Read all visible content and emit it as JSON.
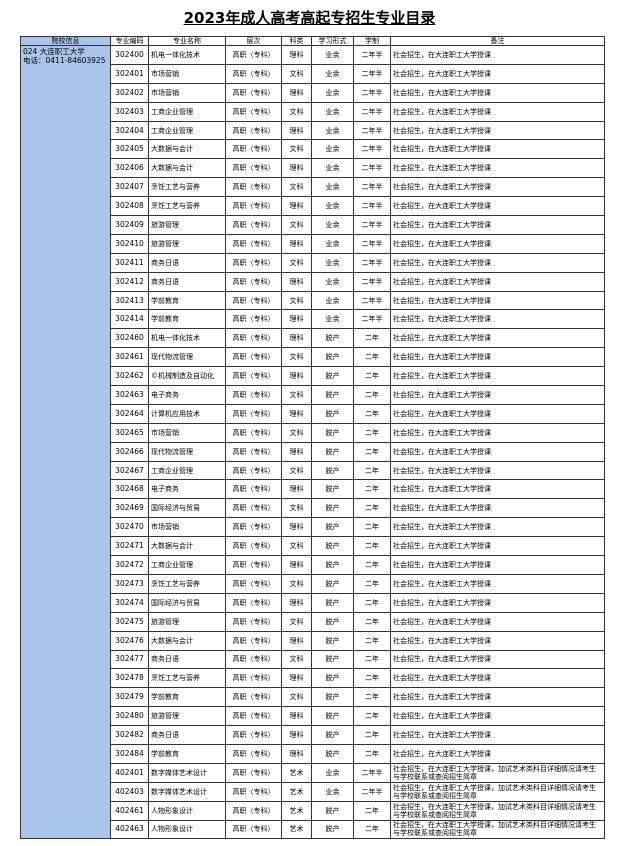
{
  "header": {
    "title": "2023年成人高考高起专招生专业目录"
  },
  "table": {
    "columns": [
      "院校信息",
      "专业编码",
      "专业名称",
      "层次",
      "科类",
      "学习形式",
      "学制",
      "备注"
    ],
    "school": {
      "name": "024 大连职工大学",
      "phone": "电话：0411-84603925"
    },
    "rows": [
      [
        "302400",
        "机电一体化技术",
        "高职（专科）",
        "理科",
        "业余",
        "二年半",
        "社会招生，在大连职工大学授课"
      ],
      [
        "302401",
        "市场营销",
        "高职（专科）",
        "文科",
        "业余",
        "二年半",
        "社会招生，在大连职工大学授课"
      ],
      [
        "302402",
        "市场营销",
        "高职（专科）",
        "理科",
        "业余",
        "二年半",
        "社会招生，在大连职工大学授课"
      ],
      [
        "302403",
        "工商企业管理",
        "高职（专科）",
        "文科",
        "业余",
        "二年半",
        "社会招生，在大连职工大学授课"
      ],
      [
        "302404",
        "工商企业管理",
        "高职（专科）",
        "理科",
        "业余",
        "二年半",
        "社会招生，在大连职工大学授课"
      ],
      [
        "302405",
        "大数据与会计",
        "高职（专科）",
        "文科",
        "业余",
        "二年半",
        "社会招生，在大连职工大学授课"
      ],
      [
        "302406",
        "大数据与会计",
        "高职（专科）",
        "理科",
        "业余",
        "二年半",
        "社会招生，在大连职工大学授课"
      ],
      [
        "302407",
        "烹饪工艺与营养",
        "高职（专科）",
        "文科",
        "业余",
        "二年半",
        "社会招生，在大连职工大学授课"
      ],
      [
        "302408",
        "烹饪工艺与营养",
        "高职（专科）",
        "理科",
        "业余",
        "二年半",
        "社会招生，在大连职工大学授课"
      ],
      [
        "302409",
        "旅游管理",
        "高职（专科）",
        "文科",
        "业余",
        "二年半",
        "社会招生，在大连职工大学授课"
      ],
      [
        "302410",
        "旅游管理",
        "高职（专科）",
        "理科",
        "业余",
        "二年半",
        "社会招生，在大连职工大学授课"
      ],
      [
        "302411",
        "商务日语",
        "高职（专科）",
        "文科",
        "业余",
        "二年半",
        "社会招生，在大连职工大学授课"
      ],
      [
        "302412",
        "商务日语",
        "高职（专科）",
        "理科",
        "业余",
        "二年半",
        "社会招生，在大连职工大学授课"
      ],
      [
        "302413",
        "学前教育",
        "高职（专科）",
        "文科",
        "业余",
        "二年半",
        "社会招生，在大连职工大学授课"
      ],
      [
        "302414",
        "学前教育",
        "高职（专科）",
        "理科",
        "业余",
        "二年半",
        "社会招生，在大连职工大学授课"
      ],
      [
        "302460",
        "机电一体化技术",
        "高职（专科）",
        "理科",
        "脱产",
        "二年",
        "社会招生，在大连职工大学授课"
      ],
      [
        "302461",
        "现代物流管理",
        "高职（专科）",
        "文科",
        "脱产",
        "二年",
        "社会招生，在大连职工大学授课"
      ],
      [
        "302462",
        "©机械制造及自动化",
        "高职（专科）",
        "理科",
        "脱产",
        "二年",
        "社会招生，在大连职工大学授课"
      ],
      [
        "302463",
        "电子商务",
        "高职（专科）",
        "文科",
        "脱产",
        "二年",
        "社会招生，在大连职工大学授课"
      ],
      [
        "302464",
        "计算机应用技术",
        "高职（专科）",
        "理科",
        "脱产",
        "二年",
        "社会招生，在大连职工大学授课"
      ],
      [
        "302465",
        "市场营销",
        "高职（专科）",
        "文科",
        "脱产",
        "二年",
        "社会招生，在大连职工大学授课"
      ],
      [
        "302466",
        "现代物流管理",
        "高职（专科）",
        "理科",
        "脱产",
        "二年",
        "社会招生，在大连职工大学授课"
      ],
      [
        "302467",
        "工商企业管理",
        "高职（专科）",
        "文科",
        "脱产",
        "二年",
        "社会招生，在大连职工大学授课"
      ],
      [
        "302468",
        "电子商务",
        "高职（专科）",
        "理科",
        "脱产",
        "二年",
        "社会招生，在大连职工大学授课"
      ],
      [
        "302469",
        "国际经济与贸易",
        "高职（专科）",
        "文科",
        "脱产",
        "二年",
        "社会招生，在大连职工大学授课"
      ],
      [
        "302470",
        "市场营销",
        "高职（专科）",
        "理科",
        "脱产",
        "二年",
        "社会招生，在大连职工大学授课"
      ],
      [
        "302471",
        "大数据与会计",
        "高职（专科）",
        "文科",
        "脱产",
        "二年",
        "社会招生，在大连职工大学授课"
      ],
      [
        "302472",
        "工商企业管理",
        "高职（专科）",
        "理科",
        "脱产",
        "二年",
        "社会招生，在大连职工大学授课"
      ],
      [
        "302473",
        "烹饪工艺与营养",
        "高职（专科）",
        "文科",
        "脱产",
        "二年",
        "社会招生，在大连职工大学授课"
      ],
      [
        "302474",
        "国际经济与贸易",
        "高职（专科）",
        "理科",
        "脱产",
        "二年",
        "社会招生，在大连职工大学授课"
      ],
      [
        "302475",
        "旅游管理",
        "高职（专科）",
        "文科",
        "脱产",
        "二年",
        "社会招生，在大连职工大学授课"
      ],
      [
        "302476",
        "大数据与会计",
        "高职（专科）",
        "理科",
        "脱产",
        "二年",
        "社会招生，在大连职工大学授课"
      ],
      [
        "302477",
        "商务日语",
        "高职（专科）",
        "文科",
        "脱产",
        "二年",
        "社会招生，在大连职工大学授课"
      ],
      [
        "302478",
        "烹饪工艺与营养",
        "高职（专科）",
        "理科",
        "脱产",
        "二年",
        "社会招生，在大连职工大学授课"
      ],
      [
        "302479",
        "学前教育",
        "高职（专科）",
        "文科",
        "脱产",
        "二年",
        "社会招生，在大连职工大学授课"
      ],
      [
        "302480",
        "旅游管理",
        "高职（专科）",
        "理科",
        "脱产",
        "二年",
        "社会招生，在大连职工大学授课"
      ],
      [
        "302482",
        "商务日语",
        "高职（专科）",
        "理科",
        "脱产",
        "二年",
        "社会招生，在大连职工大学授课"
      ],
      [
        "302484",
        "学前教育",
        "高职（专科）",
        "理科",
        "脱产",
        "二年",
        "社会招生，在大连职工大学授课"
      ],
      [
        "402401",
        "数字媒体艺术设计",
        "高职（专科）",
        "艺术",
        "业余",
        "二年半",
        "社会招生，在大连职工大学授课，加试艺术类科目详细情况请考生与学校联系或查阅招生简章"
      ],
      [
        "402403",
        "数字媒体艺术设计",
        "高职（专科）",
        "艺术",
        "业余",
        "二年半",
        "社会招生，在大连职工大学授课，加试艺术类科目详细情况请考生与学校联系或查阅招生简章"
      ],
      [
        "402461",
        "人物形象设计",
        "高职（专科）",
        "艺术",
        "脱产",
        "二年",
        "社会招生，在大连职工大学授课，加试艺术类科目详细情况请考生与学校联系或查阅招生简章"
      ],
      [
        "402463",
        "人物形象设计",
        "高职（专科）",
        "艺术",
        "脱产",
        "二年",
        "社会招生，在大连职工大学授课，加试艺术类科目详细情况请考生与学校联系或查阅招生简章"
      ]
    ]
  }
}
